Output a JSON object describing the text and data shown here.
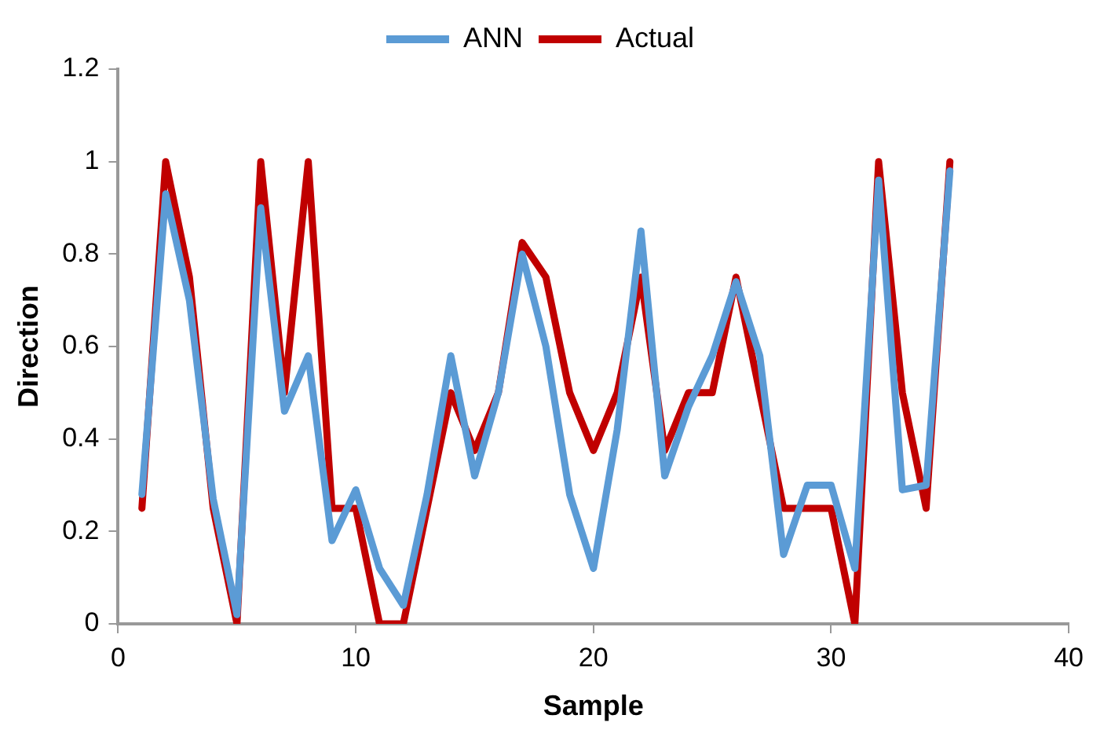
{
  "chart_data": {
    "type": "line",
    "xlabel": "Sample",
    "ylabel": "Direction",
    "x": [
      1,
      2,
      3,
      4,
      5,
      6,
      7,
      8,
      9,
      10,
      11,
      12,
      13,
      14,
      15,
      16,
      17,
      18,
      19,
      20,
      21,
      22,
      23,
      24,
      25,
      26,
      27,
      28,
      29,
      30,
      31,
      32,
      33,
      34,
      35
    ],
    "series": [
      {
        "name": "ANN",
        "color": "#5b9bd5",
        "values": [
          0.28,
          0.93,
          0.7,
          0.27,
          0.02,
          0.9,
          0.46,
          0.58,
          0.18,
          0.29,
          0.12,
          0.04,
          0.28,
          0.58,
          0.32,
          0.5,
          0.8,
          0.6,
          0.28,
          0.12,
          0.42,
          0.85,
          0.32,
          0.47,
          0.58,
          0.74,
          0.58,
          0.15,
          0.3,
          0.3,
          0.12,
          0.96,
          0.29,
          0.3,
          0.98
        ]
      },
      {
        "name": "Actual",
        "color": "#c00000",
        "values": [
          0.25,
          1,
          0.75,
          0.25,
          0,
          1,
          0.5,
          1,
          0.25,
          0.25,
          0,
          0,
          0.25,
          0.5,
          0.375,
          0.5,
          0.825,
          0.75,
          0.5,
          0.375,
          0.5,
          0.75,
          0.375,
          0.5,
          0.5,
          0.75,
          0.5,
          0.25,
          0.25,
          0.25,
          0,
          1,
          0.5,
          0.25,
          1
        ]
      }
    ],
    "xlim": [
      0,
      40
    ],
    "xticks": [
      0,
      10,
      20,
      30,
      40
    ],
    "ylim": [
      0,
      1.2
    ],
    "yticks": [
      0,
      0.2,
      0.4,
      0.6,
      0.8,
      1,
      1.2
    ],
    "grid": false,
    "legend": "top",
    "marker": "none",
    "line_style": "solid"
  }
}
